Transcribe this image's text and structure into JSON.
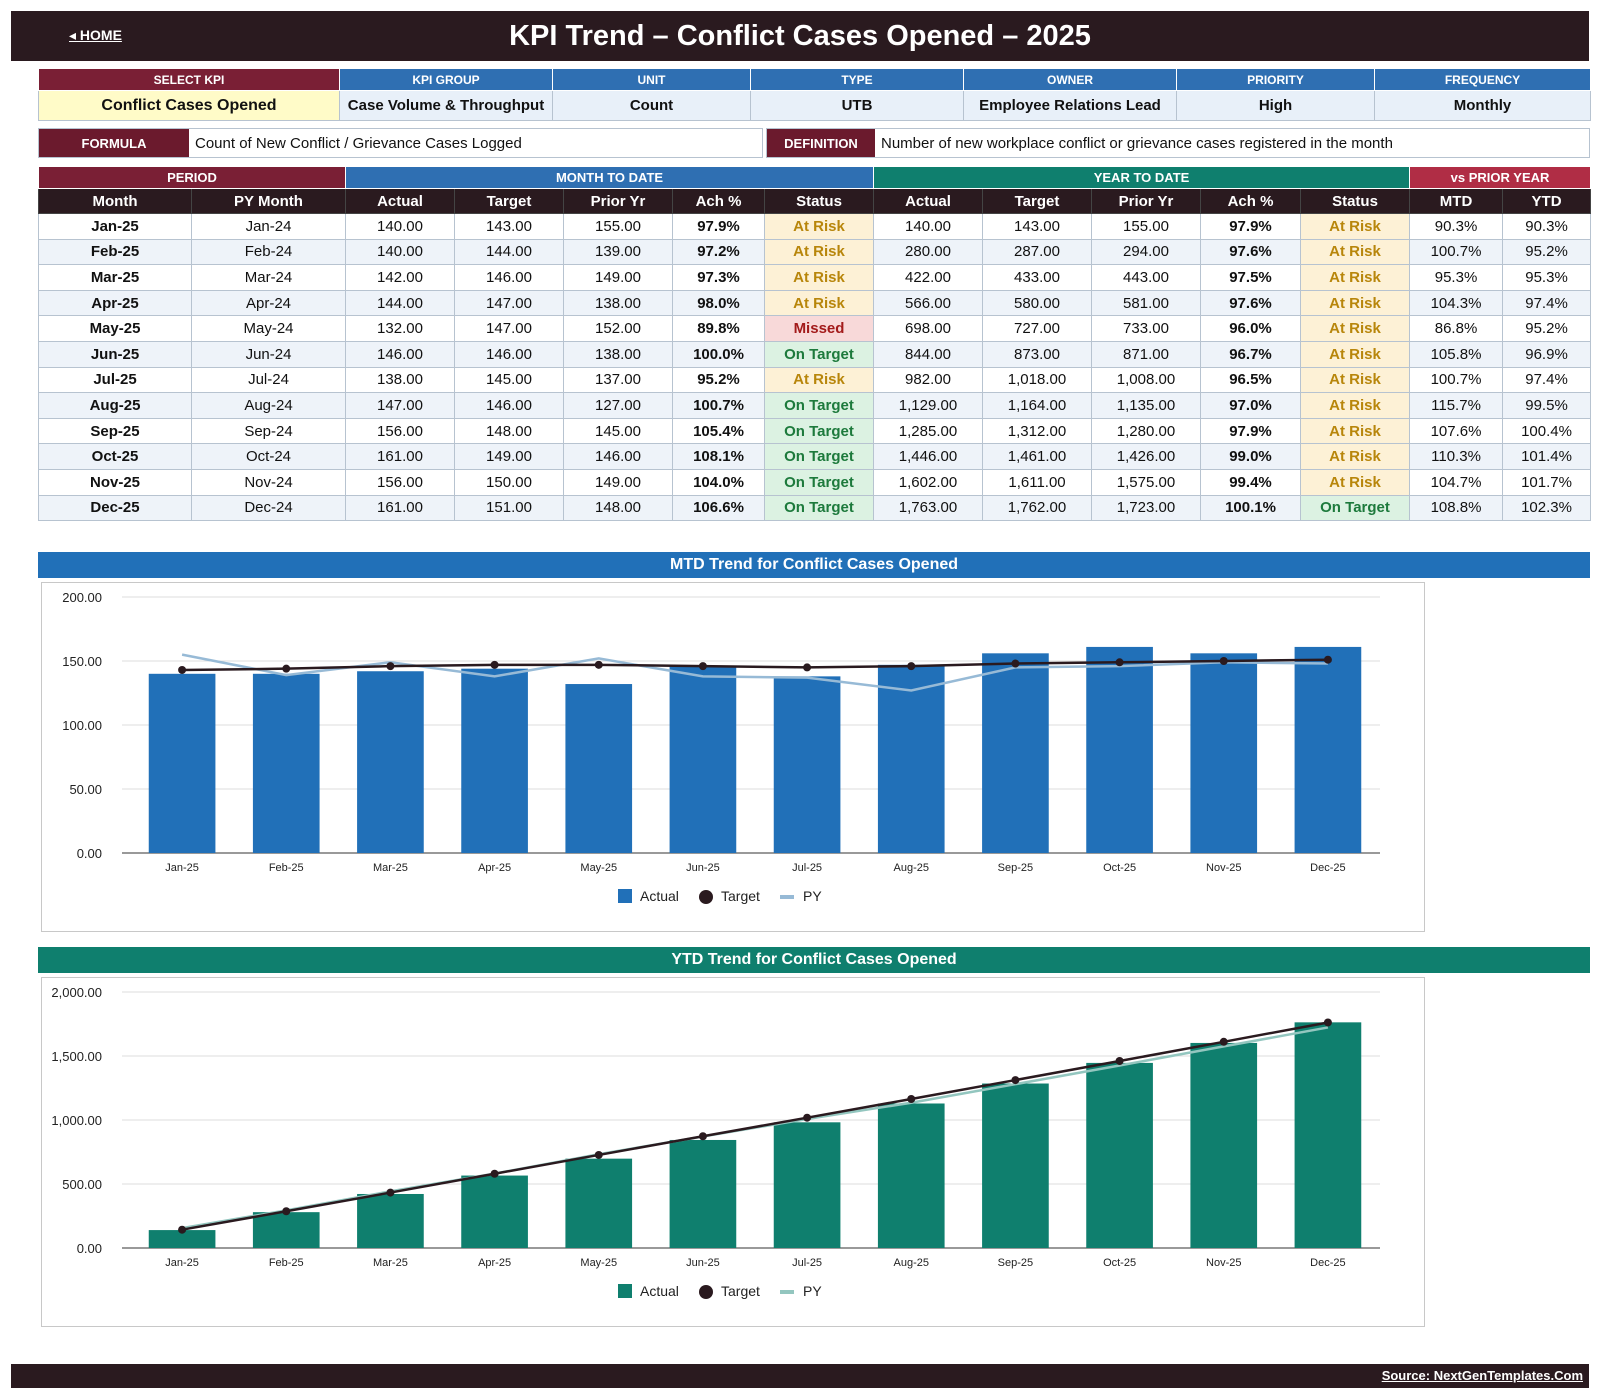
{
  "header": {
    "home_label": "◂ HOME",
    "title": "KPI Trend  –  Conflict Cases Opened  –  2025"
  },
  "meta": {
    "headers": [
      "SELECT KPI",
      "KPI GROUP",
      "UNIT",
      "TYPE",
      "OWNER",
      "PRIORITY",
      "FREQUENCY"
    ],
    "values": [
      "Conflict Cases Opened",
      "Case Volume & Throughput",
      "Count",
      "UTB",
      "Employee Relations Lead",
      "High",
      "Monthly"
    ]
  },
  "formula": {
    "label": "FORMULA",
    "value": "Count of New Conflict / Grievance Cases Logged",
    "definition_label": "DEFINITION",
    "definition": "Number of new workplace conflict or grievance cases registered in the month"
  },
  "table": {
    "groups": [
      "PERIOD",
      "MONTH TO DATE",
      "YEAR TO DATE",
      "vs PRIOR YEAR"
    ],
    "columns": [
      "Month",
      "PY Month",
      "Actual",
      "Target",
      "Prior Yr",
      "Ach %",
      "Status",
      "Actual",
      "Target",
      "Prior Yr",
      "Ach %",
      "Status",
      "MTD",
      "YTD"
    ],
    "rows": [
      [
        "Jan-25",
        "Jan-24",
        "140.00",
        "143.00",
        "155.00",
        "97.9%",
        "At Risk",
        "140.00",
        "143.00",
        "155.00",
        "97.9%",
        "At Risk",
        "90.3%",
        "90.3%"
      ],
      [
        "Feb-25",
        "Feb-24",
        "140.00",
        "144.00",
        "139.00",
        "97.2%",
        "At Risk",
        "280.00",
        "287.00",
        "294.00",
        "97.6%",
        "At Risk",
        "100.7%",
        "95.2%"
      ],
      [
        "Mar-25",
        "Mar-24",
        "142.00",
        "146.00",
        "149.00",
        "97.3%",
        "At Risk",
        "422.00",
        "433.00",
        "443.00",
        "97.5%",
        "At Risk",
        "95.3%",
        "95.3%"
      ],
      [
        "Apr-25",
        "Apr-24",
        "144.00",
        "147.00",
        "138.00",
        "98.0%",
        "At Risk",
        "566.00",
        "580.00",
        "581.00",
        "97.6%",
        "At Risk",
        "104.3%",
        "97.4%"
      ],
      [
        "May-25",
        "May-24",
        "132.00",
        "147.00",
        "152.00",
        "89.8%",
        "Missed",
        "698.00",
        "727.00",
        "733.00",
        "96.0%",
        "At Risk",
        "86.8%",
        "95.2%"
      ],
      [
        "Jun-25",
        "Jun-24",
        "146.00",
        "146.00",
        "138.00",
        "100.0%",
        "On Target",
        "844.00",
        "873.00",
        "871.00",
        "96.7%",
        "At Risk",
        "105.8%",
        "96.9%"
      ],
      [
        "Jul-25",
        "Jul-24",
        "138.00",
        "145.00",
        "137.00",
        "95.2%",
        "At Risk",
        "982.00",
        "1,018.00",
        "1,008.00",
        "96.5%",
        "At Risk",
        "100.7%",
        "97.4%"
      ],
      [
        "Aug-25",
        "Aug-24",
        "147.00",
        "146.00",
        "127.00",
        "100.7%",
        "On Target",
        "1,129.00",
        "1,164.00",
        "1,135.00",
        "97.0%",
        "At Risk",
        "115.7%",
        "99.5%"
      ],
      [
        "Sep-25",
        "Sep-24",
        "156.00",
        "148.00",
        "145.00",
        "105.4%",
        "On Target",
        "1,285.00",
        "1,312.00",
        "1,280.00",
        "97.9%",
        "At Risk",
        "107.6%",
        "100.4%"
      ],
      [
        "Oct-25",
        "Oct-24",
        "161.00",
        "149.00",
        "146.00",
        "108.1%",
        "On Target",
        "1,446.00",
        "1,461.00",
        "1,426.00",
        "99.0%",
        "At Risk",
        "110.3%",
        "101.4%"
      ],
      [
        "Nov-25",
        "Nov-24",
        "156.00",
        "150.00",
        "149.00",
        "104.0%",
        "On Target",
        "1,602.00",
        "1,611.00",
        "1,575.00",
        "99.4%",
        "At Risk",
        "104.7%",
        "101.7%"
      ],
      [
        "Dec-25",
        "Dec-24",
        "161.00",
        "151.00",
        "148.00",
        "106.6%",
        "On Target",
        "1,763.00",
        "1,762.00",
        "1,723.00",
        "100.1%",
        "On Target",
        "108.8%",
        "102.3%"
      ]
    ]
  },
  "colors": {
    "dark": "#2a1a1f",
    "maroon": "#7a1f35",
    "blue": "#2f6fb2",
    "bar_blue": "#2170b8",
    "teal": "#0f7f6e",
    "crimson": "#b02d45",
    "target_line": "#2a1a1f",
    "py_blue": "#97bad6",
    "py_teal": "#93c6bf"
  },
  "chart_data": [
    {
      "type": "bar",
      "title": "MTD Trend for Conflict Cases Opened",
      "categories": [
        "Jan-25",
        "Feb-25",
        "Mar-25",
        "Apr-25",
        "May-25",
        "Jun-25",
        "Jul-25",
        "Aug-25",
        "Sep-25",
        "Oct-25",
        "Nov-25",
        "Dec-25"
      ],
      "series": [
        {
          "name": "Actual",
          "kind": "bar",
          "values": [
            140,
            140,
            142,
            144,
            132,
            146,
            138,
            147,
            156,
            161,
            156,
            161
          ]
        },
        {
          "name": "Target",
          "kind": "line-marker",
          "values": [
            143,
            144,
            146,
            147,
            147,
            146,
            145,
            146,
            148,
            149,
            150,
            151
          ]
        },
        {
          "name": "PY",
          "kind": "line",
          "values": [
            155,
            139,
            149,
            138,
            152,
            138,
            137,
            127,
            145,
            146,
            149,
            148
          ]
        }
      ],
      "ylim": [
        0,
        200
      ],
      "yticks": [
        "0.00",
        "50.00",
        "100.00",
        "150.00",
        "200.00"
      ],
      "ytick_values": [
        0,
        50,
        100,
        150,
        200
      ],
      "legend": "bottom",
      "grid": true
    },
    {
      "type": "bar",
      "title": "YTD Trend for Conflict Cases Opened",
      "categories": [
        "Jan-25",
        "Feb-25",
        "Mar-25",
        "Apr-25",
        "May-25",
        "Jun-25",
        "Jul-25",
        "Aug-25",
        "Sep-25",
        "Oct-25",
        "Nov-25",
        "Dec-25"
      ],
      "series": [
        {
          "name": "Actual",
          "kind": "bar",
          "values": [
            140,
            280,
            422,
            566,
            698,
            844,
            982,
            1129,
            1285,
            1446,
            1602,
            1763
          ]
        },
        {
          "name": "Target",
          "kind": "line-marker",
          "values": [
            143,
            287,
            433,
            580,
            727,
            873,
            1018,
            1164,
            1312,
            1461,
            1611,
            1762
          ]
        },
        {
          "name": "PY",
          "kind": "line",
          "values": [
            155,
            294,
            443,
            581,
            733,
            871,
            1008,
            1135,
            1280,
            1426,
            1575,
            1723
          ]
        }
      ],
      "ylim": [
        0,
        2000
      ],
      "yticks": [
        "0.00",
        "500.00",
        "1,000.00",
        "1,500.00",
        "2,000.00"
      ],
      "ytick_values": [
        0,
        500,
        1000,
        1500,
        2000
      ],
      "legend": "bottom",
      "grid": true
    }
  ],
  "footer": {
    "source": "Source: NextGenTemplates.Com"
  }
}
